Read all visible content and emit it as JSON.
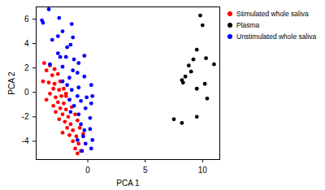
{
  "chart_data": {
    "type": "scatter",
    "x_label": "PCA 1",
    "y_label": "PCA 2",
    "xlim": [
      -4.5,
      11.5
    ],
    "xticks": [
      0,
      5,
      10
    ],
    "ylim": [
      -5.5,
      7
    ],
    "yticks": [
      -4,
      -2,
      0,
      2,
      4,
      6
    ],
    "legend": "top-right",
    "marker": "circle",
    "series": [
      {
        "name": "Stimulated whole saliva",
        "color": "red",
        "x": [
          -3.8,
          -3.3,
          -3.6,
          -2.9,
          -3.1,
          -2.6,
          -3.9,
          -3.4,
          -2.9,
          -2.4,
          -3.0,
          -2.5,
          -2.1,
          -3.3,
          -2.8,
          -2.3,
          -1.9,
          -3.6,
          -2.6,
          -2.1,
          -1.6,
          -3.0,
          -2.4,
          -1.9,
          -1.4,
          -2.8,
          -2.2,
          -1.7,
          -1.1,
          -2.5,
          -2.0,
          -1.5,
          -0.9,
          -1.8,
          -1.3,
          -0.7,
          -2.2,
          -1.6,
          -1.0,
          -0.4,
          -1.3,
          -0.8,
          -1.1,
          -0.6,
          -0.9,
          -1.9
        ],
        "values": [
          2.4,
          2.2,
          1.8,
          1.9,
          1.4,
          1.5,
          0.9,
          0.8,
          0.7,
          0.9,
          0.3,
          0.2,
          0.3,
          -0.1,
          -0.4,
          -0.3,
          -0.1,
          -0.6,
          -0.8,
          -0.9,
          -0.6,
          -1.1,
          -1.3,
          -1.4,
          -1.2,
          -1.6,
          -1.8,
          -2.0,
          -1.8,
          -2.2,
          -2.4,
          -2.6,
          -2.3,
          -2.9,
          -3.1,
          -2.9,
          -3.3,
          -3.5,
          -3.6,
          -3.4,
          -4.0,
          -4.2,
          -4.6,
          -4.8,
          -5.0,
          -0.3
        ]
      },
      {
        "name": "Plasma",
        "color": "black",
        "x": [
          9.8,
          10.0,
          11.0,
          9.5,
          9.2,
          10.3,
          8.8,
          9.0,
          8.5,
          8.2,
          8.3,
          10.2,
          9.5,
          7.5,
          8.2,
          9.5,
          10.4
        ],
        "values": [
          6.3,
          5.5,
          2.3,
          3.5,
          2.7,
          2.8,
          2.2,
          1.7,
          1.3,
          1.0,
          0.8,
          0.7,
          0.3,
          -2.2,
          -2.5,
          -2.0,
          -0.5
        ]
      },
      {
        "name": "Unstimulated whole saliva",
        "color": "blue",
        "x": [
          -3.4,
          -4.0,
          -3.9,
          -2.5,
          -2.2,
          -1.4,
          -2.6,
          -1.3,
          -3.1,
          -1.5,
          -1.8,
          -2.6,
          -1.9,
          -2.4,
          -0.3,
          -1.2,
          -0.8,
          -3.3,
          -2.2,
          -1.3,
          -0.9,
          -1.6,
          -0.3,
          -2.2,
          -1.8,
          -0.8,
          0.3,
          -1.4,
          -0.9,
          -0.1,
          -1.6,
          -0.6,
          0.4,
          0.3,
          -1.2,
          -0.2,
          -1.5,
          -0.8,
          0.2,
          -0.6,
          -0.3,
          0.2,
          -0.4,
          -0.9,
          0.4,
          0.3,
          -0.5,
          -0.2
        ],
        "values": [
          6.8,
          5.9,
          5.7,
          6.1,
          5.0,
          5.6,
          4.6,
          4.5,
          4.3,
          3.9,
          3.7,
          3.2,
          2.9,
          2.9,
          3.0,
          2.7,
          2.4,
          2.3,
          2.1,
          1.8,
          1.6,
          1.2,
          1.3,
          0.9,
          0.6,
          0.4,
          0.6,
          0.2,
          -0.3,
          -0.4,
          -0.6,
          -0.7,
          -0.3,
          -0.9,
          -1.1,
          -1.3,
          -1.6,
          -1.8,
          -2.1,
          -2.6,
          -3.1,
          -3.0,
          -3.6,
          -3.9,
          -3.9,
          -4.6,
          -4.8,
          -4.2
        ]
      }
    ]
  }
}
